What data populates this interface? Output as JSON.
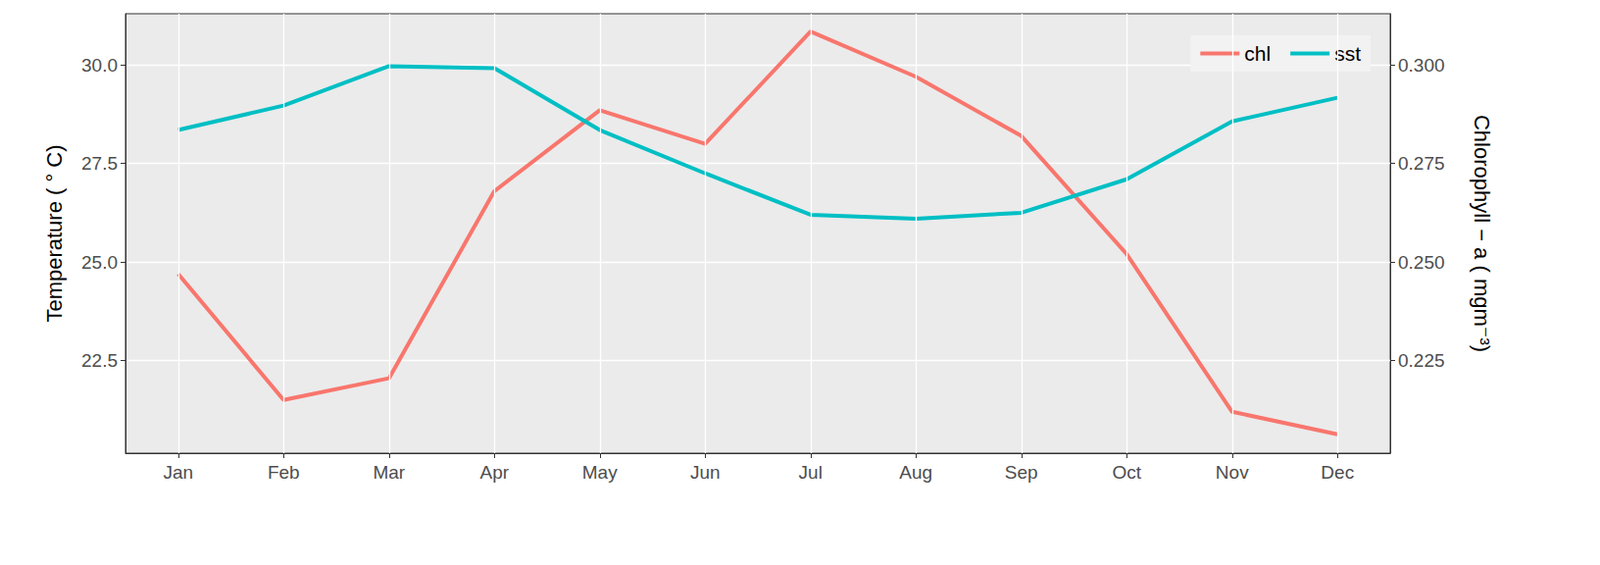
{
  "chart_data": {
    "type": "line",
    "categories": [
      "Jan",
      "Feb",
      "Mar",
      "Apr",
      "May",
      "Jun",
      "Jul",
      "Aug",
      "Sep",
      "Oct",
      "Nov",
      "Dec"
    ],
    "series": [
      {
        "name": "chl",
        "color": "#F8766D",
        "axis": "y2",
        "values": [
          0.247,
          0.215,
          0.2205,
          0.268,
          0.2885,
          0.28,
          0.3085,
          0.297,
          0.282,
          0.252,
          0.212,
          0.2063
        ]
      },
      {
        "name": "sst",
        "color": "#00BFC4",
        "values": [
          28.35,
          28.97,
          29.97,
          29.92,
          28.35,
          27.25,
          26.2,
          26.1,
          26.25,
          27.1,
          28.57,
          29.17
        ]
      }
    ],
    "ylabel": "Temperature ( ° C)",
    "y2label": "Chlorophyll − a ( mgm⁻³)",
    "ylim": [
      20.15,
      31.3
    ],
    "yticks": [
      22.5,
      {
        "value": 25,
        "label": "25.0"
      },
      27.5,
      {
        "value": 30,
        "label": "30.0"
      }
    ],
    "y2lim": [
      0.2015,
      0.313
    ],
    "y2ticks": [
      0.225,
      {
        "value": 0.25,
        "label": "0.250"
      },
      0.275,
      {
        "value": 0.3,
        "label": "0.300"
      }
    ],
    "grid": true,
    "legend": "upper right"
  }
}
